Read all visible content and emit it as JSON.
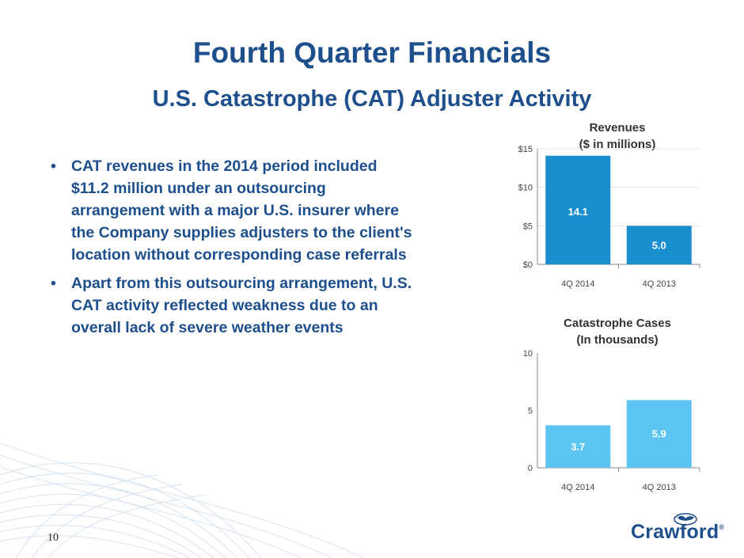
{
  "slide": {
    "title": "Fourth Quarter Financials",
    "subtitle": "U.S. Catastrophe (CAT) Adjuster Activity",
    "page_number": "10",
    "logo_text": "Crawford",
    "logo_mark": "®"
  },
  "bullets": [
    "CAT revenues in the 2014 period included $11.2 million under an outsourcing arrangement with a major U.S. insurer where the Company supplies adjusters to the client's location without corresponding case referrals",
    "Apart from this outsourcing arrangement, U.S. CAT activity reflected weakness due to an overall lack of severe weather events"
  ],
  "bullet_glyph": "•",
  "colors": {
    "title": "#1d4f8c",
    "revenue_bar": "#1a8fcd",
    "cases_bar": "#5bc4f1",
    "bar_label": "#ffffff"
  },
  "chart_data": [
    {
      "type": "bar",
      "title": "Revenues",
      "subtitle": "($ in millions)",
      "categories": [
        "4Q 2014",
        "4Q 2013"
      ],
      "values": [
        14.1,
        5.0
      ],
      "value_labels": [
        "14.1",
        "5.0"
      ],
      "ylim": [
        0,
        15
      ],
      "yticks": [
        0,
        5,
        10,
        15
      ],
      "ytick_labels": [
        "$0",
        "$5",
        "$10",
        "$15"
      ],
      "grid": true,
      "color": "#1a8fcd"
    },
    {
      "type": "bar",
      "title": "Catastrophe Cases",
      "subtitle": "(In thousands)",
      "categories": [
        "4Q 2014",
        "4Q 2013"
      ],
      "values": [
        3.7,
        5.9
      ],
      "value_labels": [
        "3.7",
        "5.9"
      ],
      "ylim": [
        0,
        10
      ],
      "yticks": [
        0,
        5,
        10
      ],
      "ytick_labels": [
        "0",
        "5",
        "10"
      ],
      "grid": false,
      "color": "#5bc4f1"
    }
  ]
}
